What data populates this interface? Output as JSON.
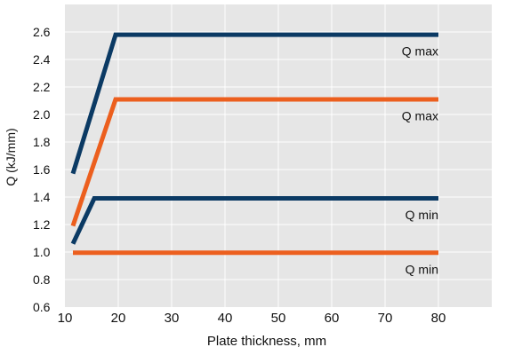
{
  "chart_data": {
    "type": "line",
    "title": "",
    "xlabel": "Plate thickness, mm",
    "ylabel": "Q (kJ/mm)",
    "xlim": [
      10,
      90
    ],
    "ylim": [
      0.6,
      2.8
    ],
    "x_ticks": [
      10,
      20,
      30,
      40,
      50,
      60,
      70,
      80
    ],
    "y_ticks": [
      "0.6",
      "0.8",
      "1.0",
      "1.2",
      "1.4",
      "1.6",
      "1.8",
      "2.0",
      "2.2",
      "2.4",
      "2.6"
    ],
    "grid": true,
    "series": [
      {
        "color": "#0b3a64",
        "points": [
          [
            11.5,
            1.57
          ],
          [
            19.5,
            2.58
          ],
          [
            80,
            2.58
          ]
        ],
        "label": "Q max",
        "label_y": 2.46
      },
      {
        "color": "#ec5f1e",
        "points": [
          [
            11.5,
            1.19
          ],
          [
            19.5,
            2.11
          ],
          [
            80,
            2.11
          ]
        ],
        "label": "Q max",
        "label_y": 1.99
      },
      {
        "color": "#0b3a64",
        "points": [
          [
            11.5,
            1.06
          ],
          [
            15.5,
            1.39
          ],
          [
            80,
            1.39
          ]
        ],
        "label": "Q min",
        "label_y": 1.27
      },
      {
        "color": "#ec5f1e",
        "points": [
          [
            11.5,
            0.995
          ],
          [
            80,
            0.995
          ]
        ],
        "label": "Q min",
        "label_y": 0.875
      }
    ]
  }
}
